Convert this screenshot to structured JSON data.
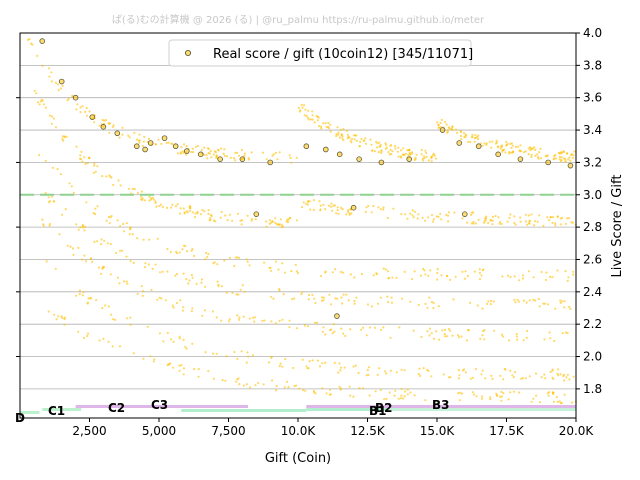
{
  "watermark": "ぱ(る)むの計算機 @ 2026 (る) | @ru_palmu  https://ru-palmu.github.io/meter",
  "chart_data": {
    "type": "scatter",
    "xlabel": "Gift (Coin)",
    "ylabel": "Live Score / Gift",
    "xlim": [
      0,
      20000
    ],
    "ylim": [
      1.62,
      4.0
    ],
    "x_ticks": [
      2500,
      5000,
      7500,
      10000,
      12500,
      15000,
      17500,
      20000
    ],
    "x_tick_labels": [
      "2,500",
      "5,000",
      "7,500",
      "10.0K",
      "12.5K",
      "15.0K",
      "17.5K",
      "20.0K"
    ],
    "y_ticks": [
      1.8,
      2.0,
      2.2,
      2.4,
      2.6,
      2.8,
      3.0,
      3.2,
      3.4,
      3.6,
      3.8,
      4.0
    ],
    "y_tick_labels": [
      "1.8",
      "2.0",
      "2.2",
      "2.4",
      "2.6",
      "2.8",
      "3.0",
      "3.2",
      "3.4",
      "3.6",
      "3.8",
      "4.0"
    ],
    "grid": "horizontal",
    "legend_position": "top-center",
    "reference_line": {
      "y": 3.0,
      "color": "#8fd18f",
      "style": "dashed"
    },
    "series": [
      {
        "name": "Real score / gift (10coin12) [345/11071]",
        "color": "#ffc000",
        "edge_color": "#5a5a3a",
        "bands": [
          {
            "y_start": 4.0,
            "y_end": 3.22,
            "x_start": 200,
            "x_end": 10000,
            "decay": 2200
          },
          {
            "y_start": 3.55,
            "y_end": 3.18,
            "x_start": 10000,
            "x_end": 15000,
            "decay": 2500
          },
          {
            "y_start": 3.45,
            "y_end": 3.2,
            "x_start": 15000,
            "x_end": 20000,
            "decay": 2500
          },
          {
            "y_start": 3.65,
            "y_end": 2.8,
            "x_start": 500,
            "x_end": 10000,
            "decay": 2600
          },
          {
            "y_start": 2.95,
            "y_end": 2.82,
            "x_start": 10000,
            "x_end": 20000,
            "decay": 5000
          },
          {
            "y_start": 3.3,
            "y_end": 2.5,
            "x_start": 600,
            "x_end": 20000,
            "decay": 3200
          },
          {
            "y_start": 3.05,
            "y_end": 2.32,
            "x_start": 700,
            "x_end": 20000,
            "decay": 3500
          },
          {
            "y_start": 2.85,
            "y_end": 2.12,
            "x_start": 800,
            "x_end": 20000,
            "decay": 3800
          },
          {
            "y_start": 2.6,
            "y_end": 1.88,
            "x_start": 800,
            "x_end": 20000,
            "decay": 4000
          },
          {
            "y_start": 2.3,
            "y_end": 1.74,
            "x_start": 900,
            "x_end": 20000,
            "decay": 4200
          }
        ],
        "highlights": [
          [
            800,
            3.95
          ],
          [
            1500,
            3.7
          ],
          [
            2000,
            3.6
          ],
          [
            2600,
            3.48
          ],
          [
            3000,
            3.42
          ],
          [
            3500,
            3.38
          ],
          [
            4200,
            3.3
          ],
          [
            4500,
            3.28
          ],
          [
            4700,
            3.32
          ],
          [
            5200,
            3.35
          ],
          [
            5600,
            3.3
          ],
          [
            6000,
            3.27
          ],
          [
            6500,
            3.25
          ],
          [
            7200,
            3.22
          ],
          [
            8000,
            3.22
          ],
          [
            9000,
            3.2
          ],
          [
            10300,
            3.3
          ],
          [
            11000,
            3.28
          ],
          [
            11500,
            3.25
          ],
          [
            12200,
            3.22
          ],
          [
            13000,
            3.2
          ],
          [
            14000,
            3.22
          ],
          [
            15200,
            3.4
          ],
          [
            15800,
            3.32
          ],
          [
            16500,
            3.3
          ],
          [
            17200,
            3.25
          ],
          [
            18000,
            3.22
          ],
          [
            19000,
            3.2
          ],
          [
            19800,
            3.18
          ],
          [
            8500,
            2.88
          ],
          [
            12000,
            2.92
          ],
          [
            16000,
            2.88
          ],
          [
            11400,
            2.25
          ]
        ]
      }
    ],
    "rank_labels": [
      "D",
      "C1",
      "C2",
      "C3",
      "B1",
      "B2",
      "B3"
    ],
    "rank_bands": [
      {
        "label": "D",
        "x_start": 0,
        "x_end": 700,
        "color": "#b4f0c8"
      },
      {
        "label": "C1",
        "x_start": 800,
        "x_end": 2200,
        "color": "#b4f0c8"
      },
      {
        "label": "C2",
        "x_start": 2000,
        "x_end": 8200,
        "color": "#dcaee6"
      },
      {
        "label": "C3",
        "x_start": 5800,
        "x_end": 10300,
        "color": "#a8ecc8"
      },
      {
        "label": "B1",
        "x_start": 10300,
        "x_end": 20000,
        "color": "#a8ecc8"
      },
      {
        "label": "B2",
        "x_start": 10300,
        "x_end": 20000,
        "color": "#dcaee6"
      },
      {
        "label": "B3",
        "x_start": 13200,
        "x_end": 20000,
        "color": "#c6f0d8"
      }
    ]
  }
}
